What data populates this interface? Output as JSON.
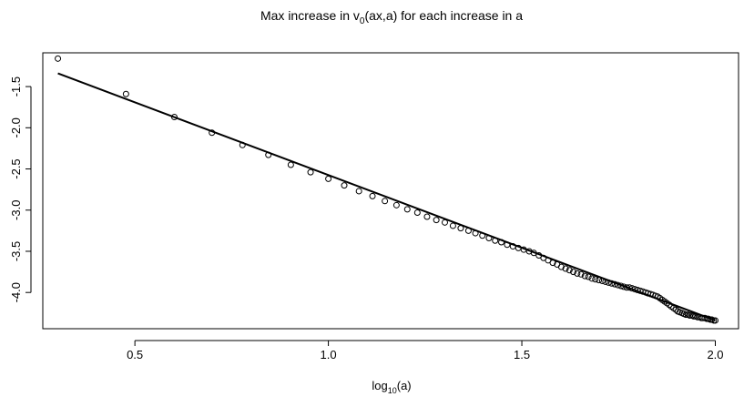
{
  "chart_data": {
    "type": "scatter",
    "title": {
      "main": "Max increase in v",
      "sub": "0",
      "rest": "(ax,a) for each increase in a"
    },
    "xlabel": {
      "main": "log",
      "sub": "10",
      "rest": "(a)"
    },
    "ylabel": "",
    "xlim": [
      0.262,
      2.06
    ],
    "ylim": [
      -4.44,
      -1.09
    ],
    "x_ticks": [
      0.5,
      1.0,
      1.5,
      2.0
    ],
    "x_tick_labels": [
      "0.5",
      "1.0",
      "1.5",
      "2.0"
    ],
    "y_ticks": [
      -1.5,
      -2.0,
      -2.5,
      -3.0,
      -3.5,
      -4.0
    ],
    "y_tick_labels": [
      "-1.5",
      "-2.0",
      "-2.5",
      "-3.0",
      "-3.5",
      "-4.0"
    ],
    "grid": false,
    "legend": "none",
    "series": [
      {
        "type": "points",
        "marker": "open-circle",
        "color": "#000000",
        "x": [
          0.301,
          0.477,
          0.602,
          0.699,
          0.778,
          0.845,
          0.903,
          0.954,
          1.0,
          1.041,
          1.079,
          1.114,
          1.146,
          1.176,
          1.204,
          1.23,
          1.255,
          1.279,
          1.301,
          1.322,
          1.342,
          1.362,
          1.38,
          1.398,
          1.415,
          1.431,
          1.447,
          1.462,
          1.477,
          1.491,
          1.505,
          1.519,
          1.531,
          1.544,
          1.556,
          1.568,
          1.58,
          1.591,
          1.602,
          1.613,
          1.623,
          1.633,
          1.643,
          1.653,
          1.663,
          1.672,
          1.681,
          1.69,
          1.699,
          1.708,
          1.716,
          1.724,
          1.732,
          1.74,
          1.748,
          1.756,
          1.763,
          1.771,
          1.778,
          1.785,
          1.792,
          1.799,
          1.806,
          1.813,
          1.82,
          1.826,
          1.833,
          1.839,
          1.845,
          1.851,
          1.857,
          1.863,
          1.869,
          1.875,
          1.881,
          1.886,
          1.892,
          1.898,
          1.903,
          1.908,
          1.914,
          1.919,
          1.924,
          1.929,
          1.934,
          1.94,
          1.944,
          1.949,
          1.954,
          1.959,
          1.964,
          1.968,
          1.973,
          1.978,
          1.982,
          1.987,
          1.991,
          1.996,
          2.0
        ],
        "y": [
          -1.16,
          -1.59,
          -1.87,
          -2.06,
          -2.21,
          -2.33,
          -2.45,
          -2.54,
          -2.62,
          -2.7,
          -2.77,
          -2.83,
          -2.89,
          -2.94,
          -2.99,
          -3.03,
          -3.08,
          -3.12,
          -3.15,
          -3.19,
          -3.22,
          -3.25,
          -3.28,
          -3.31,
          -3.34,
          -3.37,
          -3.39,
          -3.42,
          -3.44,
          -3.46,
          -3.48,
          -3.5,
          -3.52,
          -3.55,
          -3.58,
          -3.61,
          -3.64,
          -3.66,
          -3.69,
          -3.71,
          -3.73,
          -3.75,
          -3.77,
          -3.78,
          -3.8,
          -3.81,
          -3.83,
          -3.84,
          -3.85,
          -3.86,
          -3.87,
          -3.88,
          -3.89,
          -3.9,
          -3.91,
          -3.92,
          -3.93,
          -3.94,
          -3.94,
          -3.95,
          -3.96,
          -3.97,
          -3.98,
          -3.99,
          -4.0,
          -4.01,
          -4.02,
          -4.03,
          -4.04,
          -4.05,
          -4.07,
          -4.09,
          -4.11,
          -4.13,
          -4.15,
          -4.17,
          -4.19,
          -4.21,
          -4.23,
          -4.24,
          -4.25,
          -4.26,
          -4.27,
          -4.27,
          -4.28,
          -4.28,
          -4.29,
          -4.29,
          -4.3,
          -4.3,
          -4.31,
          -4.31,
          -4.31,
          -4.32,
          -4.32,
          -4.33,
          -4.33,
          -4.34,
          -4.34
        ]
      },
      {
        "type": "line",
        "color": "#000000",
        "x": [
          0.301,
          2.0
        ],
        "y": [
          -1.34,
          -4.34
        ]
      }
    ]
  }
}
